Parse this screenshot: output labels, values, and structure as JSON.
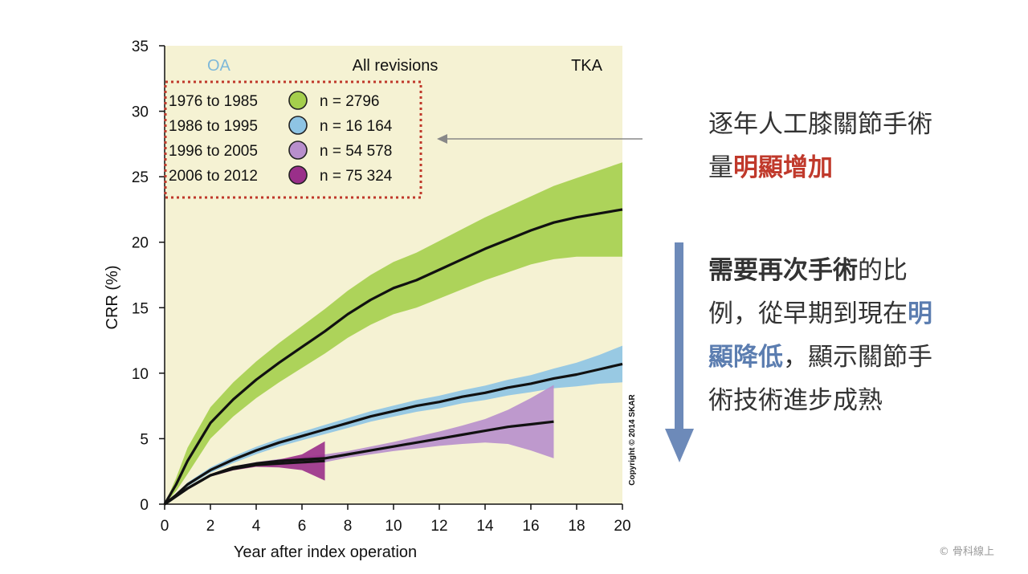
{
  "chart_data": {
    "type": "line",
    "xlabel": "Year after index operation",
    "ylabel": "CRR (%)",
    "xlim": [
      0,
      20
    ],
    "ylim": [
      0,
      35
    ],
    "xticks": [
      0,
      2,
      4,
      6,
      8,
      10,
      12,
      14,
      16,
      18,
      20
    ],
    "yticks": [
      0,
      5,
      10,
      15,
      20,
      25,
      30,
      35
    ],
    "panel_left": "OA",
    "panel_center": "All revisions",
    "panel_right": "TKA",
    "copyright": "Copyright © 2014 SKAR",
    "series": [
      {
        "name": "1976 to 1985",
        "n": "n = 2796",
        "color": "#a5cf4c",
        "x": [
          0,
          0.5,
          1,
          2,
          3,
          4,
          5,
          6,
          7,
          8,
          9,
          10,
          11,
          12,
          13,
          14,
          15,
          16,
          17,
          18,
          19,
          20
        ],
        "y": [
          0,
          1.5,
          3.3,
          6.2,
          8.0,
          9.5,
          10.8,
          12.0,
          13.2,
          14.5,
          15.6,
          16.5,
          17.1,
          17.9,
          18.7,
          19.5,
          20.2,
          20.9,
          21.5,
          21.9,
          22.2,
          22.5
        ],
        "band": [
          0,
          0.5,
          1.0,
          1.2,
          1.3,
          1.4,
          1.5,
          1.6,
          1.7,
          1.8,
          1.9,
          2.0,
          2.1,
          2.2,
          2.3,
          2.4,
          2.5,
          2.6,
          2.8,
          3.0,
          3.3,
          3.6
        ]
      },
      {
        "name": "1986 to 1995",
        "n": "n = 16 164",
        "color": "#8ec4e4",
        "x": [
          0,
          0.5,
          1,
          2,
          3,
          4,
          5,
          6,
          7,
          8,
          9,
          10,
          11,
          12,
          13,
          14,
          15,
          16,
          17,
          18,
          19,
          20
        ],
        "y": [
          0,
          0.7,
          1.5,
          2.6,
          3.4,
          4.1,
          4.7,
          5.2,
          5.7,
          6.2,
          6.7,
          7.1,
          7.5,
          7.8,
          8.2,
          8.5,
          8.9,
          9.2,
          9.6,
          9.9,
          10.3,
          10.7
        ],
        "band": [
          0,
          0.1,
          0.15,
          0.2,
          0.25,
          0.28,
          0.3,
          0.32,
          0.35,
          0.38,
          0.4,
          0.42,
          0.45,
          0.48,
          0.5,
          0.55,
          0.6,
          0.65,
          0.75,
          0.9,
          1.1,
          1.4
        ]
      },
      {
        "name": "1996 to 2005",
        "n": "n = 54 578",
        "color": "#b88fcc",
        "x": [
          0,
          0.5,
          1,
          2,
          3,
          4,
          5,
          6,
          7,
          8,
          9,
          10,
          11,
          12,
          13,
          14,
          15,
          16,
          17
        ],
        "y": [
          0,
          0.6,
          1.2,
          2.2,
          2.8,
          3.1,
          3.3,
          3.4,
          3.5,
          3.8,
          4.1,
          4.4,
          4.7,
          5.0,
          5.3,
          5.6,
          5.9,
          6.1,
          6.3
        ],
        "band": [
          0,
          0.05,
          0.1,
          0.1,
          0.1,
          0.12,
          0.15,
          0.2,
          0.3,
          0.25,
          0.3,
          0.35,
          0.45,
          0.55,
          0.7,
          0.9,
          1.3,
          2.0,
          2.8
        ]
      },
      {
        "name": "2006 to 2012",
        "n": "n = 75 324",
        "color": "#9a2f8a",
        "x": [
          0,
          0.5,
          1,
          2,
          3,
          4,
          5,
          6,
          7
        ],
        "y": [
          0,
          0.6,
          1.2,
          2.2,
          2.7,
          3.0,
          3.1,
          3.2,
          3.3
        ],
        "band": [
          0,
          0.05,
          0.1,
          0.1,
          0.12,
          0.15,
          0.3,
          0.6,
          1.5
        ]
      }
    ]
  },
  "notes": {
    "note1_plain": "逐年人工膝關節手術量",
    "note1_red": "明顯增加",
    "note2_bold": "需要再次手術",
    "note2_plain1": "的比例，從早期到現在",
    "note2_blue": "明顯降低",
    "note2_plain2": "，顯示關節手術技術進步成熟"
  },
  "watermark": "© 骨科線上"
}
